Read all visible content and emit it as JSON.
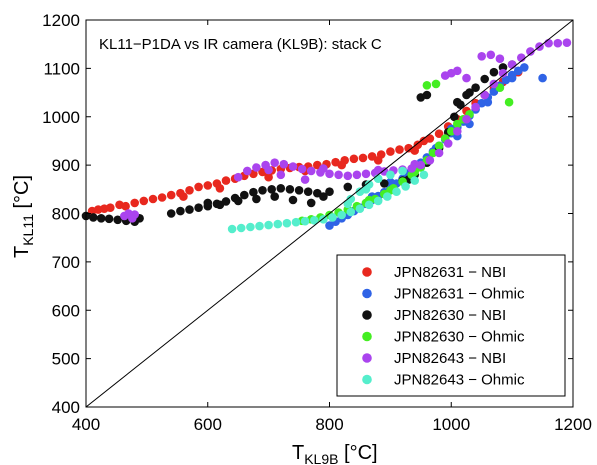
{
  "chart_data": {
    "type": "scatter",
    "title": "KL11−P1DA vs IR camera (KL9B): stack C",
    "xlabel": {
      "main": "T",
      "sub": "KL9B",
      "unit": " [°C]"
    },
    "ylabel": {
      "main": "T",
      "sub": "KL11",
      "unit": " [°C]"
    },
    "xlim": [
      400,
      1200
    ],
    "ylim": [
      400,
      1200
    ],
    "xticks": [
      400,
      600,
      800,
      1000,
      1200
    ],
    "yticks": [
      400,
      500,
      600,
      700,
      800,
      900,
      1000,
      1100,
      1200
    ],
    "grid": false,
    "legend_position": "bottom-right",
    "reference_line": {
      "label": "",
      "from": [
        400,
        400
      ],
      "to": [
        1200,
        1200
      ]
    },
    "series": [
      {
        "name": "JPN82631 − NBI",
        "color": "#e8281e",
        "points": [
          [
            410,
            805
          ],
          [
            420,
            808
          ],
          [
            430,
            810
          ],
          [
            440,
            812
          ],
          [
            455,
            818
          ],
          [
            465,
            815
          ],
          [
            480,
            822
          ],
          [
            495,
            826
          ],
          [
            510,
            830
          ],
          [
            525,
            833
          ],
          [
            540,
            838
          ],
          [
            555,
            842
          ],
          [
            570,
            848
          ],
          [
            585,
            855
          ],
          [
            600,
            858
          ],
          [
            615,
            862
          ],
          [
            630,
            868
          ],
          [
            645,
            872
          ],
          [
            660,
            878
          ],
          [
            675,
            882
          ],
          [
            690,
            886
          ],
          [
            705,
            889
          ],
          [
            720,
            892
          ],
          [
            735,
            894
          ],
          [
            750,
            896
          ],
          [
            765,
            897
          ],
          [
            780,
            900
          ],
          [
            795,
            902
          ],
          [
            810,
            906
          ],
          [
            825,
            910
          ],
          [
            840,
            913
          ],
          [
            855,
            915
          ],
          [
            870,
            918
          ],
          [
            885,
            922
          ],
          [
            900,
            928
          ],
          [
            915,
            932
          ],
          [
            930,
            935
          ],
          [
            945,
            942
          ],
          [
            955,
            950
          ],
          [
            965,
            955
          ],
          [
            980,
            965
          ],
          [
            995,
            980
          ],
          [
            1010,
            995
          ],
          [
            1025,
            1012
          ],
          [
            1040,
            1028
          ],
          [
            1055,
            1045
          ],
          [
            1070,
            1058
          ],
          [
            1085,
            1072
          ],
          [
            1100,
            1085
          ],
          [
            1110,
            1092
          ],
          [
            560,
            835
          ],
          [
            620,
            852
          ],
          [
            700,
            875
          ],
          [
            760,
            888
          ],
          [
            820,
            900
          ],
          [
            880,
            910
          ],
          [
            940,
            930
          ]
        ]
      },
      {
        "name": "JPN82631 − Ohmic",
        "color": "#2f63e6",
        "points": [
          [
            800,
            775
          ],
          [
            810,
            783
          ],
          [
            820,
            790
          ],
          [
            830,
            797
          ],
          [
            840,
            805
          ],
          [
            850,
            812
          ],
          [
            860,
            820
          ],
          [
            870,
            828
          ],
          [
            880,
            836
          ],
          [
            890,
            844
          ],
          [
            900,
            852
          ],
          [
            910,
            862
          ],
          [
            920,
            872
          ],
          [
            930,
            883
          ],
          [
            940,
            894
          ],
          [
            950,
            905
          ],
          [
            960,
            916
          ],
          [
            970,
            928
          ],
          [
            980,
            940
          ],
          [
            990,
            953
          ],
          [
            1000,
            966
          ],
          [
            1010,
            978
          ],
          [
            1020,
            990
          ],
          [
            1030,
            1002
          ],
          [
            1040,
            1015
          ],
          [
            1050,
            1028
          ],
          [
            1060,
            1040
          ],
          [
            1070,
            1052
          ],
          [
            1080,
            1064
          ],
          [
            1090,
            1076
          ],
          [
            1100,
            1086
          ],
          [
            1110,
            1095
          ],
          [
            1120,
            1102
          ],
          [
            1150,
            1080
          ],
          [
            1010,
            960
          ],
          [
            1030,
            985
          ],
          [
            1060,
            1030
          ],
          [
            900,
            865
          ],
          [
            870,
            835
          ],
          [
            830,
            800
          ],
          [
            950,
            900
          ],
          [
            975,
            935
          ],
          [
            1000,
            975
          ],
          [
            1100,
            1080
          ]
        ]
      },
      {
        "name": "JPN82630 − NBI",
        "color": "#111111",
        "points": [
          [
            400,
            795
          ],
          [
            412,
            792
          ],
          [
            425,
            790
          ],
          [
            438,
            789
          ],
          [
            452,
            787
          ],
          [
            466,
            785
          ],
          [
            480,
            783
          ],
          [
            488,
            790
          ],
          [
            540,
            800
          ],
          [
            555,
            805
          ],
          [
            570,
            808
          ],
          [
            585,
            812
          ],
          [
            600,
            815
          ],
          [
            615,
            820
          ],
          [
            630,
            825
          ],
          [
            645,
            832
          ],
          [
            660,
            838
          ],
          [
            675,
            844
          ],
          [
            690,
            848
          ],
          [
            705,
            850
          ],
          [
            720,
            852
          ],
          [
            735,
            850
          ],
          [
            750,
            848
          ],
          [
            765,
            845
          ],
          [
            780,
            842
          ],
          [
            790,
            835
          ],
          [
            770,
            822
          ],
          [
            740,
            828
          ],
          [
            710,
            835
          ],
          [
            680,
            830
          ],
          [
            650,
            826
          ],
          [
            620,
            818
          ],
          [
            600,
            822
          ],
          [
            800,
            845
          ],
          [
            830,
            855
          ],
          [
            860,
            860
          ],
          [
            890,
            862
          ],
          [
            920,
            868
          ],
          [
            940,
            880
          ],
          [
            960,
            905
          ],
          [
            980,
            935
          ],
          [
            995,
            968
          ],
          [
            1005,
            1000
          ],
          [
            1015,
            1025
          ],
          [
            1025,
            1045
          ],
          [
            1040,
            1060
          ],
          [
            1055,
            1078
          ],
          [
            1070,
            1092
          ],
          [
            1085,
            1102
          ],
          [
            1100,
            1108
          ],
          [
            950,
            1040
          ],
          [
            960,
            1045
          ],
          [
            930,
            870
          ],
          [
            1010,
            1030
          ],
          [
            1030,
            1050
          ]
        ]
      },
      {
        "name": "JPN82630 − Ohmic",
        "color": "#44ee22",
        "points": [
          [
            755,
            785
          ],
          [
            770,
            788
          ],
          [
            785,
            792
          ],
          [
            800,
            797
          ],
          [
            815,
            802
          ],
          [
            830,
            808
          ],
          [
            845,
            815
          ],
          [
            860,
            822
          ],
          [
            875,
            830
          ],
          [
            890,
            840
          ],
          [
            905,
            852
          ],
          [
            920,
            866
          ],
          [
            935,
            880
          ],
          [
            950,
            895
          ],
          [
            960,
            910
          ],
          [
            970,
            925
          ],
          [
            980,
            940
          ],
          [
            990,
            955
          ],
          [
            1000,
            970
          ],
          [
            1010,
            985
          ],
          [
            1020,
            995
          ],
          [
            1030,
            1005
          ],
          [
            960,
            1065
          ],
          [
            975,
            1068
          ],
          [
            1095,
            1030
          ],
          [
            1080,
            1060
          ],
          [
            865,
            828
          ],
          [
            900,
            848
          ],
          [
            940,
            886
          ]
        ]
      },
      {
        "name": "JPN82643 − NBI",
        "color": "#aa44ee",
        "points": [
          [
            463,
            795
          ],
          [
            470,
            800
          ],
          [
            476,
            790
          ],
          [
            480,
            798
          ],
          [
            650,
            875
          ],
          [
            665,
            888
          ],
          [
            680,
            895
          ],
          [
            695,
            900
          ],
          [
            710,
            905
          ],
          [
            725,
            902
          ],
          [
            740,
            897
          ],
          [
            755,
            892
          ],
          [
            770,
            888
          ],
          [
            785,
            885
          ],
          [
            800,
            882
          ],
          [
            815,
            880
          ],
          [
            830,
            878
          ],
          [
            845,
            880
          ],
          [
            860,
            882
          ],
          [
            875,
            884
          ],
          [
            890,
            887
          ],
          [
            905,
            889
          ],
          [
            920,
            891
          ],
          [
            935,
            893
          ],
          [
            950,
            900
          ],
          [
            965,
            910
          ],
          [
            980,
            925
          ],
          [
            995,
            945
          ],
          [
            1010,
            970
          ],
          [
            1025,
            995
          ],
          [
            1040,
            1020
          ],
          [
            1055,
            1045
          ],
          [
            1070,
            1068
          ],
          [
            1085,
            1090
          ],
          [
            1100,
            1108
          ],
          [
            1115,
            1122
          ],
          [
            1130,
            1135
          ],
          [
            1145,
            1145
          ],
          [
            1160,
            1152
          ],
          [
            1175,
            1152
          ],
          [
            1190,
            1153
          ],
          [
            990,
            1085
          ],
          [
            1000,
            1090
          ],
          [
            1010,
            1095
          ],
          [
            1025,
            1080
          ],
          [
            1050,
            1125
          ],
          [
            1065,
            1128
          ],
          [
            1080,
            1120
          ],
          [
            940,
            902
          ],
          [
            700,
            890
          ],
          [
            720,
            880
          ],
          [
            760,
            870
          ],
          [
            790,
            893
          ],
          [
            880,
            890
          ]
        ]
      },
      {
        "name": "JPN82643 − Ohmic",
        "color": "#55eecc",
        "points": [
          [
            640,
            768
          ],
          [
            655,
            770
          ],
          [
            670,
            772
          ],
          [
            685,
            774
          ],
          [
            700,
            776
          ],
          [
            715,
            778
          ],
          [
            730,
            780
          ],
          [
            745,
            782
          ],
          [
            760,
            784
          ],
          [
            775,
            786
          ],
          [
            790,
            788
          ],
          [
            805,
            792
          ],
          [
            820,
            797
          ],
          [
            835,
            803
          ],
          [
            850,
            810
          ],
          [
            865,
            818
          ],
          [
            880,
            826
          ],
          [
            895,
            835
          ],
          [
            910,
            845
          ],
          [
            925,
            856
          ],
          [
            940,
            868
          ],
          [
            955,
            880
          ],
          [
            835,
            830
          ],
          [
            850,
            845
          ],
          [
            865,
            860
          ],
          [
            880,
            872
          ],
          [
            830,
            820
          ],
          [
            900,
            880
          ],
          [
            920,
            888
          ],
          [
            860,
            850
          ]
        ]
      }
    ]
  }
}
